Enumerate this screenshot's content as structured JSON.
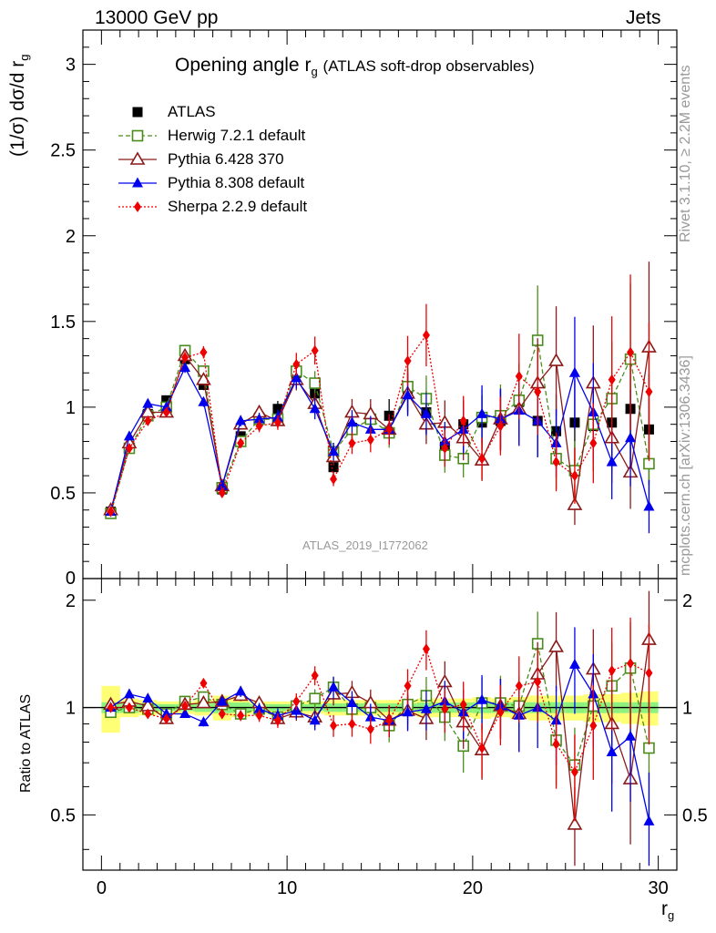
{
  "header": {
    "left": "13000 GeV pp",
    "right": "Jets"
  },
  "side_text": {
    "rivet": "Rivet 3.1.10, ≥ 2.2M events",
    "mcplots": "mcplots.cern.ch [arXiv:1306.3436]"
  },
  "chart_data": [
    {
      "type": "line",
      "title": "Opening angle r",
      "title_sub": "g",
      "title_suffix": "(ATLAS soft-drop observables)",
      "ylabel": "(1/σ) dσ/d r",
      "ylabel_sub": "g",
      "watermark": "ATLAS_2019_I1772062",
      "xlim": [
        -1,
        31
      ],
      "ylim": [
        0,
        3.2
      ],
      "yticks": [
        "0.5",
        "1",
        "1.5",
        "2",
        "2.5",
        "3"
      ],
      "ytick_values": [
        0.5,
        1,
        1.5,
        2,
        2.5,
        3
      ],
      "ytick_zero_label": "0",
      "x": [
        0.5,
        1.5,
        2.5,
        3.5,
        4.5,
        5.5,
        6.5,
        7.5,
        8.5,
        9.5,
        10.5,
        11.5,
        12.5,
        13.5,
        14.5,
        15.5,
        16.5,
        17.5,
        18.5,
        19.5,
        20.5,
        21.5,
        22.5,
        23.5,
        24.5,
        25.5,
        26.5,
        27.5,
        28.5,
        29.5
      ],
      "series": [
        {
          "name": "ATLAS",
          "color": "#000000",
          "style": "data",
          "values": [
            0.39,
            0.76,
            0.96,
            1.04,
            1.28,
            1.13,
            0.52,
            0.83,
            0.94,
            0.99,
            1.2,
            1.08,
            0.65,
            0.88,
            0.93,
            0.95,
            1.1,
            0.97,
            0.77,
            0.9,
            0.91,
            0.92,
            1.03,
            0.92,
            0.86,
            0.91,
            0.89,
            0.91,
            0.99,
            0.87
          ]
        },
        {
          "name": "Herwig 7.2.1 default",
          "color": "#4a8c1c",
          "style": "herwig",
          "values": [
            0.38,
            0.76,
            0.95,
            1.0,
            1.33,
            1.21,
            0.53,
            0.8,
            0.93,
            0.93,
            1.21,
            1.14,
            0.74,
            0.87,
            0.93,
            0.85,
            1.12,
            1.05,
            0.72,
            0.7,
            0.94,
            0.95,
            1.04,
            1.39,
            0.7,
            0.63,
            0.9,
            1.05,
            1.28,
            0.67
          ]
        },
        {
          "name": "Pythia 6.428 370",
          "color": "#8b1a1a",
          "style": "p6",
          "values": [
            0.4,
            0.79,
            0.97,
            0.97,
            1.3,
            1.16,
            0.54,
            0.9,
            0.97,
            0.92,
            1.16,
            1.02,
            0.71,
            0.97,
            0.96,
            0.87,
            1.08,
            0.9,
            0.91,
            0.82,
            0.69,
            0.93,
            0.99,
            1.14,
            1.27,
            0.43,
            1.14,
            0.82,
            0.62,
            1.35
          ]
        },
        {
          "name": "Pythia 8.308 default",
          "color": "#0000ee",
          "style": "p8",
          "values": [
            0.39,
            0.83,
            1.02,
            1.0,
            1.23,
            1.03,
            0.54,
            0.92,
            0.93,
            0.94,
            1.17,
            0.99,
            0.74,
            0.91,
            0.87,
            0.87,
            1.07,
            0.96,
            0.8,
            0.87,
            0.96,
            0.93,
            0.98,
            0.92,
            0.79,
            1.2,
            0.97,
            0.68,
            0.82,
            0.42
          ]
        },
        {
          "name": "Sherpa 2.2.9 default",
          "color": "#ee0000",
          "style": "sherpa",
          "values": [
            0.39,
            0.76,
            0.92,
            0.97,
            1.29,
            1.32,
            0.5,
            0.79,
            0.89,
            0.91,
            1.25,
            1.33,
            0.58,
            0.79,
            0.81,
            0.87,
            1.27,
            1.42,
            0.76,
            0.92,
            0.7,
            0.89,
            1.18,
            1.09,
            0.68,
            0.6,
            0.79,
            1.16,
            1.32,
            1.09
          ]
        }
      ]
    },
    {
      "type": "line",
      "ylabel": "Ratio to ATLAS",
      "xlabel": "r",
      "xlabel_sub": "g",
      "xlim": [
        -1,
        31
      ],
      "ylim": [
        0.35,
        2.3
      ],
      "log_y": true,
      "xticks": [
        "0",
        "10",
        "20",
        "30"
      ],
      "xtick_values": [
        0,
        10,
        20,
        30
      ],
      "yticks": [
        "0.5",
        "1",
        "2"
      ],
      "ytick_values": [
        0.5,
        1,
        2
      ],
      "x": [
        0.5,
        1.5,
        2.5,
        3.5,
        4.5,
        5.5,
        6.5,
        7.5,
        8.5,
        9.5,
        10.5,
        11.5,
        12.5,
        13.5,
        14.5,
        15.5,
        16.5,
        17.5,
        18.5,
        19.5,
        20.5,
        21.5,
        22.5,
        23.5,
        24.5,
        25.5,
        26.5,
        27.5,
        28.5,
        29.5
      ],
      "series": [
        {
          "name": "Herwig 7.2.1 default",
          "color": "#4a8c1c",
          "style": "herwig",
          "values": [
            0.97,
            1.0,
            0.99,
            0.96,
            1.04,
            1.07,
            1.02,
            0.96,
            0.99,
            0.94,
            1.01,
            1.06,
            1.14,
            0.99,
            1.0,
            0.89,
            1.02,
            1.08,
            0.94,
            0.78,
            1.03,
            1.03,
            1.01,
            1.51,
            0.81,
            0.69,
            1.01,
            1.15,
            1.29,
            0.77
          ]
        },
        {
          "name": "Pythia 6.428 370",
          "color": "#8b1a1a",
          "style": "p6",
          "values": [
            1.02,
            1.04,
            1.01,
            0.93,
            1.02,
            1.03,
            1.04,
            1.08,
            1.03,
            0.93,
            0.97,
            0.94,
            1.09,
            1.1,
            1.03,
            0.92,
            0.98,
            0.93,
            1.18,
            0.91,
            0.76,
            1.01,
            0.96,
            1.24,
            1.48,
            0.47,
            1.28,
            0.9,
            0.63,
            1.55
          ]
        },
        {
          "name": "Pythia 8.308 default",
          "color": "#0000ee",
          "style": "p8",
          "values": [
            1.0,
            1.09,
            1.06,
            0.96,
            0.96,
            0.91,
            1.04,
            1.11,
            0.99,
            0.95,
            0.98,
            0.92,
            1.14,
            1.03,
            0.94,
            0.92,
            0.97,
            0.99,
            1.04,
            0.97,
            1.05,
            1.01,
            0.95,
            1.0,
            0.92,
            1.32,
            1.09,
            0.75,
            0.83,
            0.48
          ]
        },
        {
          "name": "Sherpa 2.2.9 default",
          "color": "#ee0000",
          "style": "sherpa",
          "values": [
            1.0,
            1.0,
            0.96,
            0.93,
            1.01,
            1.17,
            0.96,
            0.95,
            0.95,
            0.92,
            1.04,
            1.23,
            0.89,
            0.9,
            0.87,
            0.92,
            1.15,
            1.46,
            0.99,
            1.02,
            0.77,
            0.97,
            1.15,
            1.18,
            0.79,
            0.66,
            0.89,
            1.27,
            1.33,
            1.25
          ]
        }
      ]
    }
  ]
}
